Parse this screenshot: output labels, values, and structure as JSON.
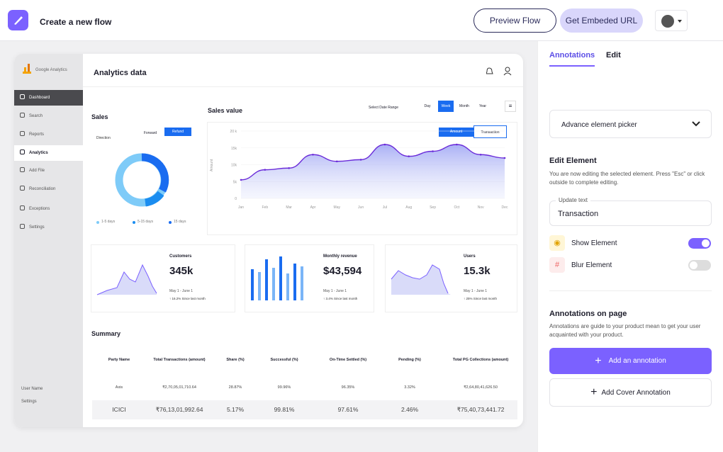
{
  "header": {
    "title": "Create a new flow",
    "preview_button": "Preview Flow",
    "embed_button": "Get Embeded URL"
  },
  "dashboard": {
    "brand": "Google Analytics",
    "nav": [
      "Dashboard",
      "Search",
      "Reports",
      "Analytics",
      "Add File",
      "Reconciliation",
      "Exceptions",
      "Settings"
    ],
    "footer_nav": [
      "User Name",
      "Settings"
    ],
    "title": "Analytics data",
    "sales": {
      "title": "Sales",
      "toggle": [
        "Forward",
        "Refund"
      ],
      "direction": "Direction",
      "legend": [
        "1-5 days",
        "5-15 days",
        "15 days"
      ]
    },
    "sales_value": {
      "title": "Sales value",
      "date_range_label": "Select Date Range",
      "ranges": [
        "Day",
        "Week",
        "Month",
        "Year"
      ],
      "toggle": [
        "Amount",
        "Transaction"
      ],
      "y_label": "Amount",
      "categories": [
        "Jan",
        "Feb",
        "Mar",
        "Apr",
        "May",
        "Jun",
        "Jul",
        "Aug",
        "Sep",
        "Oct",
        "Nov",
        "Dec"
      ],
      "values": [
        5500,
        8500,
        9000,
        13000,
        11000,
        11500,
        16000,
        12500,
        14000,
        16000,
        13000,
        12000
      ],
      "ylim": [
        0,
        20000
      ],
      "yticks": [
        0,
        {
          "value": 5000,
          "label": "5k"
        },
        {
          "value": 10000,
          "label": "10k"
        },
        {
          "value": 15000,
          "label": "15k"
        },
        {
          "value": 20000,
          "label": "20 k"
        }
      ]
    },
    "cards": [
      {
        "title": "Customers",
        "value": "345k",
        "period": "May 1 - June 1",
        "change": "↑ 16.2% Since last month"
      },
      {
        "title": "Monthly revenue",
        "value": "$43,594",
        "period": "May 1 - June 1",
        "change": "↑ 3.4% Since last month"
      },
      {
        "title": "Users",
        "value": "15.3k",
        "period": "May 1 - June 1",
        "change": "↑ 25% Since last month"
      }
    ],
    "summary": {
      "title": "Summary",
      "columns": [
        "Party Name",
        "Total Transactions (amount)",
        "Share (%)",
        "Successful (%)",
        "On-Time Settled (%)",
        "Pending (%)",
        "Total PG Collections (amount)"
      ],
      "rows": [
        [
          "Axis",
          "₹2,70,05,01,710.64",
          "28.87%",
          "99.96%",
          "96.35%",
          "3.32%",
          "₹2,64,80,41,626.50"
        ],
        [
          "ICICI",
          "₹76,13,01,992.64",
          "5.17%",
          "99.81%",
          "97.61%",
          "2.46%",
          "₹75,40,73,441.72"
        ]
      ]
    }
  },
  "panel": {
    "tabs": [
      "Annotations",
      "Edit"
    ],
    "picker": "Advance element picker",
    "edit_title": "Edit Element",
    "edit_desc": "You are now editing the selected element. Press \"Esc\" or click outside to complete editing.",
    "field_label": "Update text",
    "field_value": "Transaction",
    "show": "Show Element",
    "blur": "Blur Element",
    "annotations_title": "Annotations on page",
    "annotations_desc": "Annotations are guide to your product mean to get your user acquainted with your product.",
    "add_button": "Add an annotation",
    "cover_button": "Add Cover Annotation"
  }
}
